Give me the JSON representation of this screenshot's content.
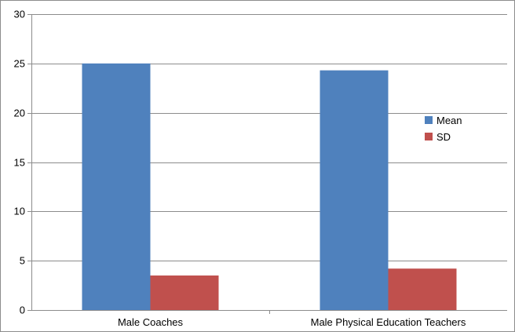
{
  "chart_data": {
    "type": "bar",
    "title": "",
    "xlabel": "",
    "ylabel": "",
    "categories": [
      "Male Coaches",
      "Male Physical Education Teachers"
    ],
    "series": [
      {
        "name": "Mean",
        "values": [
          25.0,
          24.3
        ],
        "color": "#4f81bd"
      },
      {
        "name": "SD",
        "values": [
          3.5,
          4.2
        ],
        "color": "#c0504d"
      }
    ],
    "ylim": [
      0,
      30
    ],
    "yticks": [
      0,
      5,
      10,
      15,
      20,
      25,
      30
    ],
    "grid": true,
    "legend": "right"
  }
}
